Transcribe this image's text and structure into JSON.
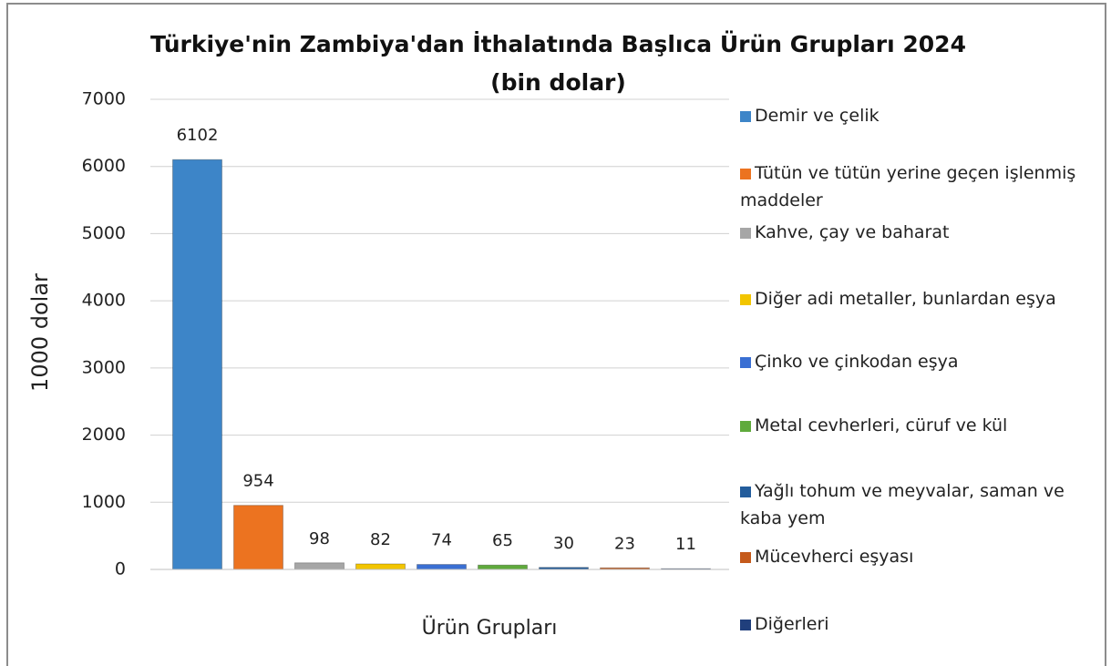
{
  "chart_data": {
    "type": "bar",
    "title": "Türkiye'nin Zambiya'dan İthalatında Başlıca Ürün Grupları 2024 (bin dolar)",
    "y_axis_label": "1000 dolar",
    "x_axis_label": "Ürün Grupları",
    "categories": [
      "Demir ve çelik",
      "Tütün ve tütün yerine geçen işlenmiş maddeler",
      "Kahve, çay ve baharat",
      "Diğer adi metaller, bunlardan eşya",
      "Çinko ve çinkodan eşya",
      "Metal cevherleri, cüruf ve kül",
      "Yağlı tohum ve meyvalar, saman ve kaba yem",
      "Mücevherci eşyası",
      "Diğerleri"
    ],
    "values": [
      6102,
      954,
      98,
      82,
      74,
      65,
      30,
      23,
      11
    ],
    "colors": [
      "#3d85c8",
      "#ec7320",
      "#a6a6a6",
      "#f2c500",
      "#3a6fd3",
      "#5faa3c",
      "#235d9c",
      "#c55a1b",
      "#203f7c"
    ],
    "ylim": [
      0,
      7000
    ],
    "yticks": [
      0,
      1000,
      2000,
      3000,
      4000,
      5000,
      6000,
      7000
    ],
    "grid": true
  }
}
